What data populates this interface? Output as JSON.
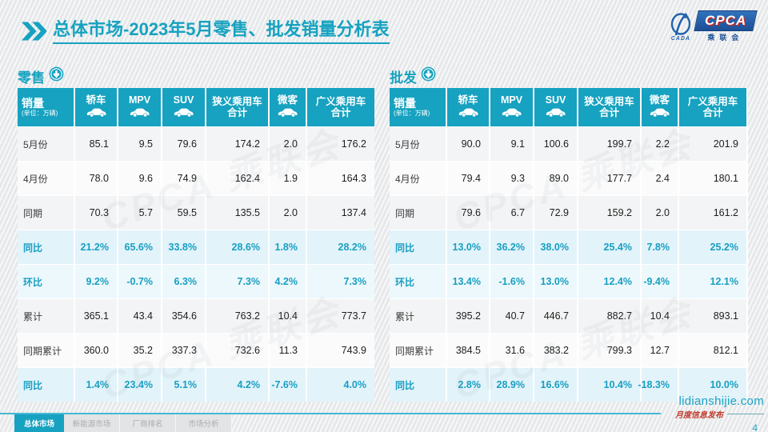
{
  "title": {
    "main": "总体市场",
    "rest": "-2023年5月零售、批发销量分析表"
  },
  "logo": {
    "cada_label": "CADA",
    "cpca_label": "CPCA",
    "cn_label": "乘联会"
  },
  "watermark_text": "CPCA 乘联会",
  "colors": {
    "accent": "#16a2c0",
    "light_row": "#e2f3fa",
    "red": "#c0392b",
    "logo_blue": "#1c4f96"
  },
  "tables": [
    {
      "title": "零售",
      "corner": {
        "label": "销量",
        "unit": "(单位：万辆)"
      },
      "columns": [
        {
          "label": "轿车",
          "icon": "sedan-icon"
        },
        {
          "label": "MPV",
          "icon": "mpv-icon"
        },
        {
          "label": "SUV",
          "icon": "suv-icon"
        },
        {
          "label": "狭义乘用车",
          "sublabel": "合计"
        },
        {
          "label": "微客",
          "icon": "microvan-icon"
        },
        {
          "label": "广义乘用车",
          "sublabel": "合计"
        }
      ],
      "rows": [
        {
          "label": "5月份",
          "style": "num",
          "values": [
            "85.1",
            "9.5",
            "79.6",
            "174.2",
            "2.0",
            "176.2"
          ]
        },
        {
          "label": "4月份",
          "style": "num",
          "values": [
            "78.0",
            "9.6",
            "74.9",
            "162.4",
            "1.9",
            "164.3"
          ]
        },
        {
          "label": "同期",
          "style": "num",
          "values": [
            "70.3",
            "5.7",
            "59.5",
            "135.5",
            "2.0",
            "137.4"
          ]
        },
        {
          "label": "同比",
          "style": "pct",
          "values": [
            "21.2%",
            "65.6%",
            "33.8%",
            "28.6%",
            "1.8%",
            "28.2%"
          ]
        },
        {
          "label": "环比",
          "style": "pct",
          "values": [
            "9.2%",
            "-0.7%",
            "6.3%",
            "7.3%",
            "4.2%",
            "7.3%"
          ]
        },
        {
          "label": "累计",
          "style": "num",
          "values": [
            "365.1",
            "43.4",
            "354.6",
            "763.2",
            "10.4",
            "773.7"
          ]
        },
        {
          "label": "同期累计",
          "style": "num",
          "values": [
            "360.0",
            "35.2",
            "337.3",
            "732.6",
            "11.3",
            "743.9"
          ]
        },
        {
          "label": "同比",
          "style": "pct",
          "values": [
            "1.4%",
            "23.4%",
            "5.1%",
            "4.2%",
            "-7.6%",
            "4.0%"
          ]
        }
      ]
    },
    {
      "title": "批发",
      "corner": {
        "label": "销量",
        "unit": "(单位：万辆)"
      },
      "columns": [
        {
          "label": "轿车",
          "icon": "sedan-icon"
        },
        {
          "label": "MPV",
          "icon": "mpv-icon"
        },
        {
          "label": "SUV",
          "icon": "suv-icon"
        },
        {
          "label": "狭义乘用车",
          "sublabel": "合计"
        },
        {
          "label": "微客",
          "icon": "microvan-icon"
        },
        {
          "label": "广义乘用车",
          "sublabel": "合计"
        }
      ],
      "rows": [
        {
          "label": "5月份",
          "style": "num",
          "values": [
            "90.0",
            "9.1",
            "100.6",
            "199.7",
            "2.2",
            "201.9"
          ]
        },
        {
          "label": "4月份",
          "style": "num",
          "values": [
            "79.4",
            "9.3",
            "89.0",
            "177.7",
            "2.4",
            "180.1"
          ]
        },
        {
          "label": "同期",
          "style": "num",
          "values": [
            "79.6",
            "6.7",
            "72.9",
            "159.2",
            "2.0",
            "161.2"
          ]
        },
        {
          "label": "同比",
          "style": "pct",
          "values": [
            "13.0%",
            "36.2%",
            "38.0%",
            "25.4%",
            "7.8%",
            "25.2%"
          ]
        },
        {
          "label": "环比",
          "style": "pct",
          "values": [
            "13.4%",
            "-1.6%",
            "13.0%",
            "12.4%",
            "-9.4%",
            "12.1%"
          ]
        },
        {
          "label": "累计",
          "style": "num",
          "values": [
            "395.2",
            "40.7",
            "446.7",
            "882.7",
            "10.4",
            "893.1"
          ]
        },
        {
          "label": "同期累计",
          "style": "num",
          "values": [
            "384.5",
            "31.6",
            "383.2",
            "799.3",
            "12.7",
            "812.1"
          ]
        },
        {
          "label": "同比",
          "style": "pct",
          "values": [
            "2.8%",
            "28.9%",
            "16.6%",
            "10.4%",
            "-18.3%",
            "10.0%"
          ]
        }
      ]
    }
  ],
  "footer": {
    "tabs": [
      {
        "label": "总体市场",
        "active": true
      },
      {
        "label": "新能源市场",
        "active": false
      },
      {
        "label": "厂商排名",
        "active": false
      },
      {
        "label": "市场分析",
        "active": false
      }
    ],
    "site": "lidianshijie.com",
    "issue_label": "月度信息发布",
    "page": "4"
  }
}
